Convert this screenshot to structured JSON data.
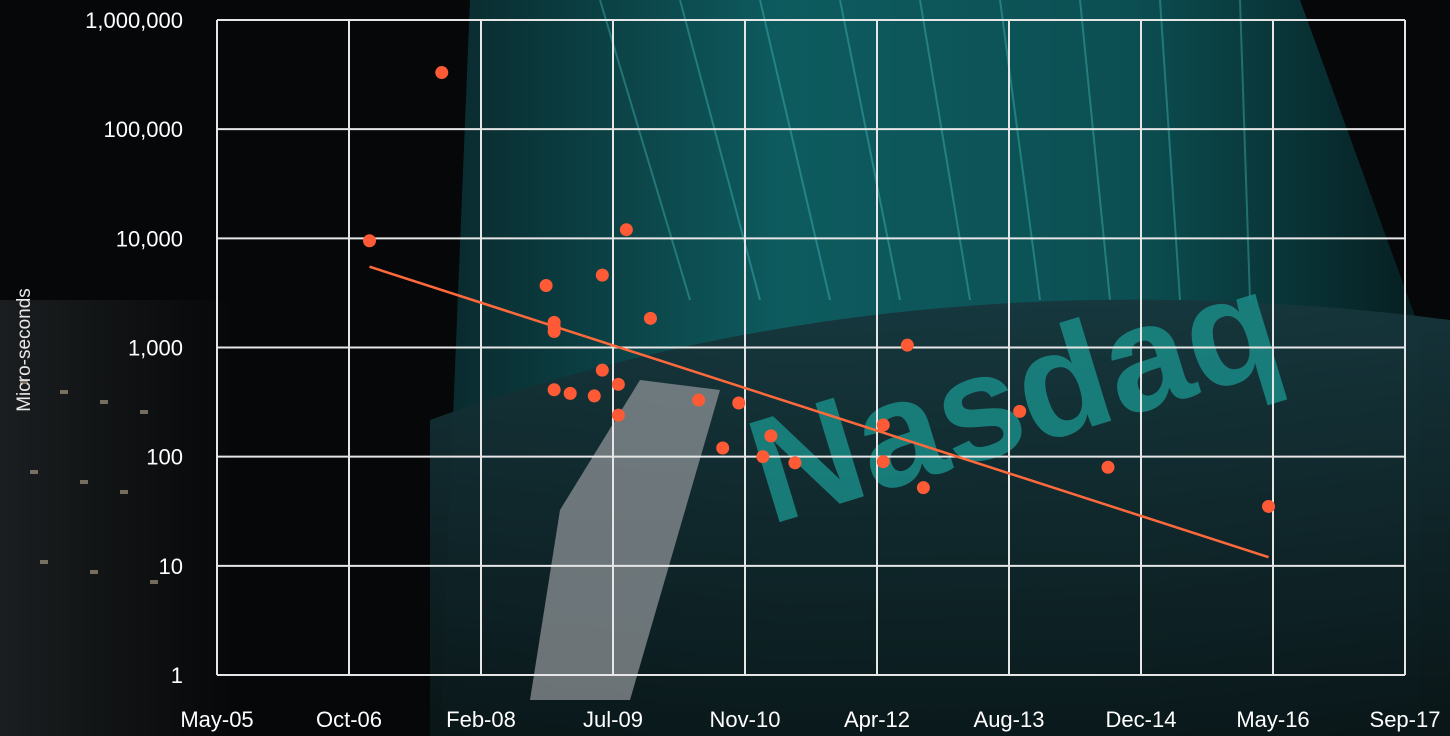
{
  "background": {
    "watermark_text": "Nasdaq",
    "colors": {
      "base": "#050708",
      "teal": "#0f6f72",
      "band": "#123036",
      "logo_grey": "#8c9295"
    }
  },
  "chart_data": {
    "type": "scatter",
    "title": "",
    "xlabel": "",
    "ylabel": "Micro-seconds",
    "y_scale": "log",
    "ylim": [
      1,
      1000000
    ],
    "xlim": [
      "2005-05",
      "2017-09"
    ],
    "grid": true,
    "x_tick_labels": [
      "May-05",
      "Oct-06",
      "Feb-08",
      "Jul-09",
      "Nov-10",
      "Apr-12",
      "Aug-13",
      "Dec-14",
      "May-16",
      "Sep-17"
    ],
    "y_tick_labels": [
      "1",
      "10",
      "100",
      "1,000",
      "10,000",
      "100,000",
      "1,000,000"
    ],
    "y_tick_values": [
      1,
      10,
      100,
      1000,
      10000,
      100000,
      1000000
    ],
    "point_color": "#ff5a36",
    "trend_color": "#ff6a3d",
    "points": [
      {
        "x": "2006-12",
        "y": 9500
      },
      {
        "x": "2007-09",
        "y": 330000
      },
      {
        "x": "2008-10",
        "y": 3700
      },
      {
        "x": "2008-11",
        "y": 1700
      },
      {
        "x": "2008-11",
        "y": 1550
      },
      {
        "x": "2008-11",
        "y": 1400
      },
      {
        "x": "2008-11",
        "y": 410
      },
      {
        "x": "2009-01",
        "y": 380
      },
      {
        "x": "2009-04",
        "y": 360
      },
      {
        "x": "2009-05",
        "y": 4600
      },
      {
        "x": "2009-05",
        "y": 620
      },
      {
        "x": "2009-07",
        "y": 460
      },
      {
        "x": "2009-07",
        "y": 240
      },
      {
        "x": "2009-08",
        "y": 12000
      },
      {
        "x": "2009-11",
        "y": 1850
      },
      {
        "x": "2010-05",
        "y": 330
      },
      {
        "x": "2010-08",
        "y": 120
      },
      {
        "x": "2010-10",
        "y": 310
      },
      {
        "x": "2011-01",
        "y": 100
      },
      {
        "x": "2011-02",
        "y": 155
      },
      {
        "x": "2011-05",
        "y": 88
      },
      {
        "x": "2012-04",
        "y": 195
      },
      {
        "x": "2012-04",
        "y": 90
      },
      {
        "x": "2012-07",
        "y": 1050
      },
      {
        "x": "2012-09",
        "y": 52
      },
      {
        "x": "2013-09",
        "y": 260
      },
      {
        "x": "2014-08",
        "y": 80
      },
      {
        "x": "2016-04",
        "y": 35
      }
    ],
    "trend_line": [
      {
        "x": "2006-12",
        "y": 5500
      },
      {
        "x": "2016-04",
        "y": 12
      }
    ]
  }
}
